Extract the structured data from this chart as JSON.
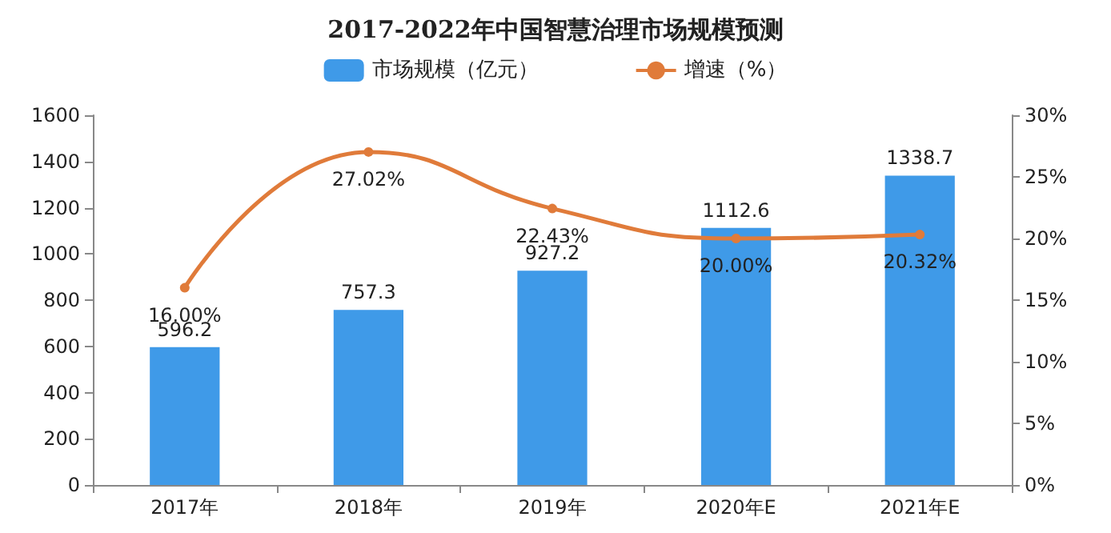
{
  "chart_data": {
    "type": "bar",
    "title": "2017-2022年中国智慧治理市场规模预测",
    "categories": [
      "2017年",
      "2018年",
      "2019年",
      "2020年E",
      "2021年E"
    ],
    "series": [
      {
        "name": "市场规模（亿元）",
        "color": "#3f9ae8",
        "values": [
          596.2,
          757.3,
          927.2,
          1112.6,
          1338.7
        ],
        "value_labels": [
          "596.2",
          "757.3",
          "927.2",
          "1112.6",
          "1338.7"
        ]
      },
      {
        "name": "增速（%）",
        "type": "line",
        "axis": "y2",
        "color": "#e07b3a",
        "values": [
          16.0,
          27.02,
          22.43,
          20.0,
          20.32
        ],
        "value_labels": [
          "16.00%",
          "27.02%",
          "22.43%",
          "20.00%",
          "20.32%"
        ]
      }
    ],
    "ylim": [
      0,
      1600
    ],
    "yticks": [
      0,
      200,
      400,
      600,
      800,
      1000,
      1200,
      1400,
      1600
    ],
    "y2lim": [
      0,
      30
    ],
    "y2ticks": [
      {
        "value": 0,
        "label": "0%"
      },
      {
        "value": 5,
        "label": "5%"
      },
      {
        "value": 10,
        "label": "10%"
      },
      {
        "value": 15,
        "label": "15%"
      },
      {
        "value": 20,
        "label": "20%"
      },
      {
        "value": 25,
        "label": "25%"
      },
      {
        "value": 30,
        "label": "30%"
      }
    ],
    "grid": false,
    "legend": "top",
    "marker": "circle",
    "line_style": "solid"
  }
}
